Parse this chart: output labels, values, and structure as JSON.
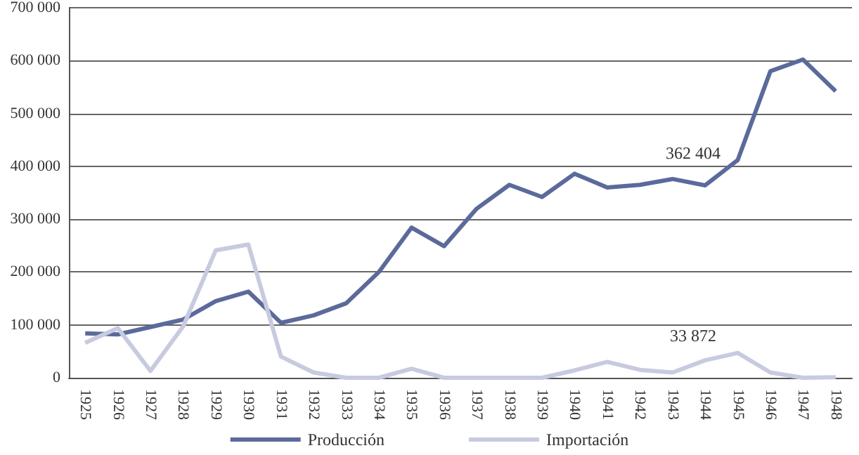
{
  "chart_data": {
    "type": "line",
    "categories": [
      "1925",
      "1926",
      "1927",
      "1928",
      "1929",
      "1930",
      "1931",
      "1932",
      "1933",
      "1934",
      "1935",
      "1936",
      "1937",
      "1938",
      "1939",
      "1940",
      "1941",
      "1942",
      "1943",
      "1944",
      "1945",
      "1946",
      "1947",
      "1948"
    ],
    "series": [
      {
        "name": "Producción",
        "color": "#5b6a9b",
        "values": [
          84000,
          82000,
          96000,
          110000,
          145000,
          163000,
          104000,
          118000,
          141000,
          200000,
          284000,
          249000,
          320000,
          365000,
          342000,
          386000,
          360000,
          365000,
          376000,
          364000,
          412000,
          580000,
          602000,
          542000
        ]
      },
      {
        "name": "Importación",
        "color": "#c8cadf",
        "values": [
          66000,
          94000,
          13000,
          97000,
          241000,
          252000,
          40000,
          10000,
          0,
          0,
          17000,
          0,
          0,
          0,
          0,
          14000,
          30000,
          15000,
          10000,
          33000,
          47000,
          10000,
          0,
          1000
        ]
      }
    ],
    "ylim": [
      0,
      700000
    ],
    "yticks": [
      0,
      100000,
      200000,
      300000,
      400000,
      500000,
      600000,
      700000
    ],
    "grid": "y",
    "legend": "bottom",
    "marker": "none",
    "line_style": "solid",
    "annotations": [
      "362 404",
      "33 872"
    ]
  }
}
